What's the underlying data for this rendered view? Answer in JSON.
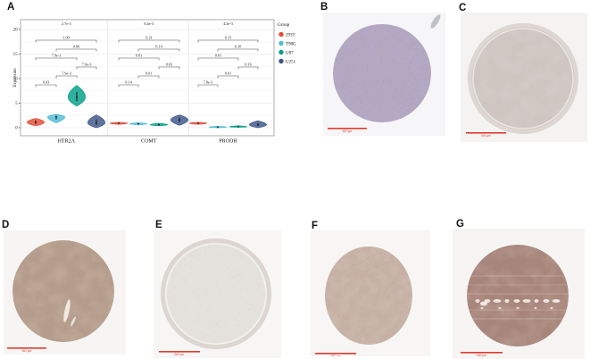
{
  "panels": {
    "A": {
      "label": "A"
    },
    "B": {
      "label": "B",
      "scale_bar": "500 μm",
      "stain": {
        "bg": "#f6f5f7",
        "base": "#b3a8bf",
        "mottle": "#79689a",
        "speckle": "#5a4c7c",
        "corner_blob": "#a9afbb",
        "bar_color": "#e23a2e"
      }
    },
    "C": {
      "label": "C",
      "scale_bar": "500 μm",
      "stain": {
        "bg": "#f4f3f2",
        "base": "#cfc6c1",
        "mottle": "#b3a7a1",
        "speckle": "#97897f",
        "rim": "#ded7d3",
        "bar_color": "#e23a2e"
      }
    },
    "D": {
      "label": "D",
      "scale_bar": "500 μm",
      "stain": {
        "bg": "#f6f5f4",
        "base": "#b59c8c",
        "mottle": "#94765c",
        "speckle": "#754f39",
        "streak": "#f2ece7",
        "bar_color": "#e23a2e"
      }
    },
    "E": {
      "label": "E",
      "scale_bar": "500 μm",
      "stain": {
        "bg": "#f7f6f5",
        "base": "#e4e1dd",
        "mottle": "#cfc8c1",
        "speckle": "#7d4f33",
        "rim": "#dad4cf",
        "bar_color": "#e23a2e"
      }
    },
    "F": {
      "label": "F",
      "scale_bar": "500 μm",
      "stain": {
        "bg": "#f7f6f5",
        "base": "#c7b1a5",
        "mottle": "#a5887a",
        "speckle": "#6f452e",
        "bar_color": "#e23a2e"
      }
    },
    "G": {
      "label": "G",
      "scale_bar": "500 μm",
      "stain": {
        "bg": "#f6f5f4",
        "base": "#a8857a",
        "mottle": "#8b685c",
        "speckle": "#5f3e32",
        "stripe": "#ffffff",
        "fleck": "#f7f3f0",
        "bar_color": "#e23a2e"
      }
    }
  },
  "chart_data": {
    "type": "violin",
    "title": "",
    "xlabel": "",
    "ylabel": "Expression",
    "ylim": [
      0,
      20
    ],
    "yticks": [
      0,
      5,
      10,
      15,
      20
    ],
    "categories": [
      "HTR2A",
      "COMT",
      "PRODH"
    ],
    "groups": [
      "293T",
      "T98G",
      "U87",
      "U251"
    ],
    "group_colors": {
      "293T": "#E64B35",
      "T98G": "#4DBBD5",
      "U87": "#00A087",
      "U251": "#3C5488"
    },
    "legend_title": "Group",
    "legend_position": "right",
    "grid": true,
    "violins": [
      {
        "gene": "HTR2A",
        "group": "293T",
        "min": 0.4,
        "median": 1.1,
        "max": 1.9
      },
      {
        "gene": "HTR2A",
        "group": "T98G",
        "min": 1.0,
        "median": 2.2,
        "max": 2.7
      },
      {
        "gene": "HTR2A",
        "group": "U87",
        "min": 4.4,
        "median": 6.2,
        "max": 8.6
      },
      {
        "gene": "HTR2A",
        "group": "U251",
        "min": 0.0,
        "median": 1.0,
        "max": 2.6
      },
      {
        "gene": "COMT",
        "group": "293T",
        "min": 0.7,
        "median": 0.9,
        "max": 1.1
      },
      {
        "gene": "COMT",
        "group": "T98G",
        "min": 0.6,
        "median": 0.8,
        "max": 1.0
      },
      {
        "gene": "COMT",
        "group": "U87",
        "min": 0.4,
        "median": 0.6,
        "max": 0.9
      },
      {
        "gene": "COMT",
        "group": "U251",
        "min": 0.5,
        "median": 1.6,
        "max": 2.6
      },
      {
        "gene": "PRODH",
        "group": "293T",
        "min": 0.7,
        "median": 0.9,
        "max": 1.1
      },
      {
        "gene": "PRODH",
        "group": "T98G",
        "min": 0.0,
        "median": 0.1,
        "max": 0.3
      },
      {
        "gene": "PRODH",
        "group": "U87",
        "min": 0.1,
        "median": 0.2,
        "max": 0.4
      },
      {
        "gene": "PRODH",
        "group": "U251",
        "min": 0.0,
        "median": 0.6,
        "max": 1.4
      }
    ],
    "overall_p": {
      "HTR2A": "2.7e-3",
      "COMT": "8.4e-3",
      "PRODH": "4.2e-3"
    },
    "comparisons": {
      "HTR2A": [
        {
          "a": "293T",
          "b": "U251",
          "p": "1.00"
        },
        {
          "a": "T98G",
          "b": "U251",
          "p": "0.06"
        },
        {
          "a": "293T",
          "b": "U87",
          "p": "7.9e-3"
        },
        {
          "a": "U87",
          "b": "U251",
          "p": "7.9e-3"
        },
        {
          "a": "T98G",
          "b": "U87",
          "p": "7.9e-3"
        },
        {
          "a": "293T",
          "b": "T98G",
          "p": "0.03"
        }
      ],
      "COMT": [
        {
          "a": "293T",
          "b": "U251",
          "p": "0.21"
        },
        {
          "a": "T98G",
          "b": "U251",
          "p": "0.14"
        },
        {
          "a": "293T",
          "b": "U87",
          "p": "0.01"
        },
        {
          "a": "U87",
          "b": "U251",
          "p": "0.03"
        },
        {
          "a": "T98G",
          "b": "U87",
          "p": "0.01"
        },
        {
          "a": "293T",
          "b": "T98G",
          "p": "0.14"
        }
      ],
      "PRODH": [
        {
          "a": "293T",
          "b": "U251",
          "p": "0.15"
        },
        {
          "a": "T98G",
          "b": "U251",
          "p": "0.10"
        },
        {
          "a": "293T",
          "b": "U87",
          "p": "0.01"
        },
        {
          "a": "U87",
          "b": "U251",
          "p": "0.16"
        },
        {
          "a": "T98G",
          "b": "U87",
          "p": "0.01"
        },
        {
          "a": "293T",
          "b": "T98G",
          "p": "7.8e-3"
        }
      ]
    }
  }
}
